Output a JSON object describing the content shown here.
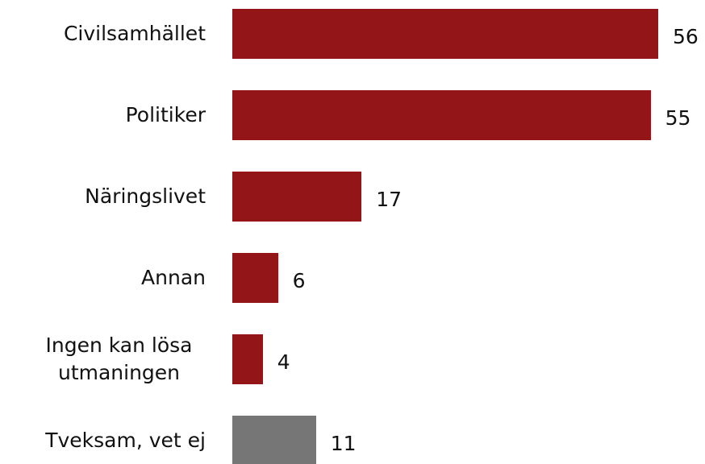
{
  "chart_data": {
    "type": "barh",
    "categories": [
      "Civilsamhället",
      "Politiker",
      "Näringslivet",
      "Annan",
      "Ingen kan lösa utmaningen",
      "Tveksam, vet ej"
    ],
    "values": [
      56,
      55,
      17,
      6,
      4,
      11
    ],
    "colors": [
      "#941518",
      "#941518",
      "#941518",
      "#941518",
      "#941518",
      "#767676"
    ]
  }
}
